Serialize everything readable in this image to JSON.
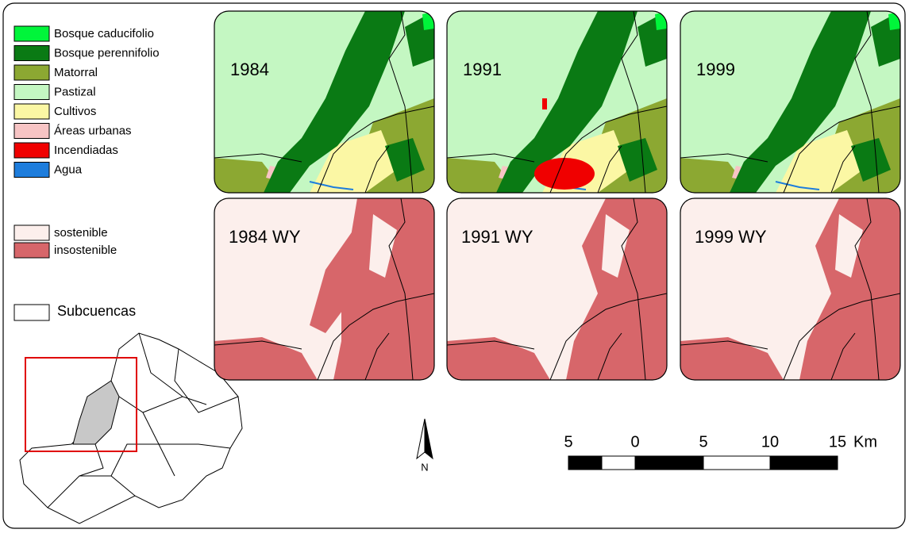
{
  "legend_land_cover": [
    {
      "label": "Bosque caducifolio",
      "color": "#00f53a"
    },
    {
      "label": "Bosque perennifolio",
      "color": "#0a7a14"
    },
    {
      "label": "Matorral",
      "color": "#8ca832"
    },
    {
      "label": "Pastizal",
      "color": "#c4f7c2"
    },
    {
      "label": "Cultivos",
      "color": "#fbf7a4"
    },
    {
      "label": "Áreas urbanas",
      "color": "#f7c4c4"
    },
    {
      "label": "Incendiadas",
      "color": "#f00000"
    },
    {
      "label": "Agua",
      "color": "#1e7ddc"
    }
  ],
  "legend_sustainability": [
    {
      "label": "sostenible",
      "color": "#fcefec"
    },
    {
      "label": "insostenible",
      "color": "#d7666a"
    }
  ],
  "legend_subbasins": {
    "label": "Subcuencas"
  },
  "panels": [
    {
      "label": "1984"
    },
    {
      "label": "1991"
    },
    {
      "label": "1999"
    },
    {
      "label": "1984 WY"
    },
    {
      "label": "1991 WY"
    },
    {
      "label": "1999 WY"
    }
  ],
  "north": "N",
  "scale_bar": {
    "labels": [
      "5",
      "0",
      "5",
      "10",
      "15"
    ],
    "unit": "Km"
  }
}
